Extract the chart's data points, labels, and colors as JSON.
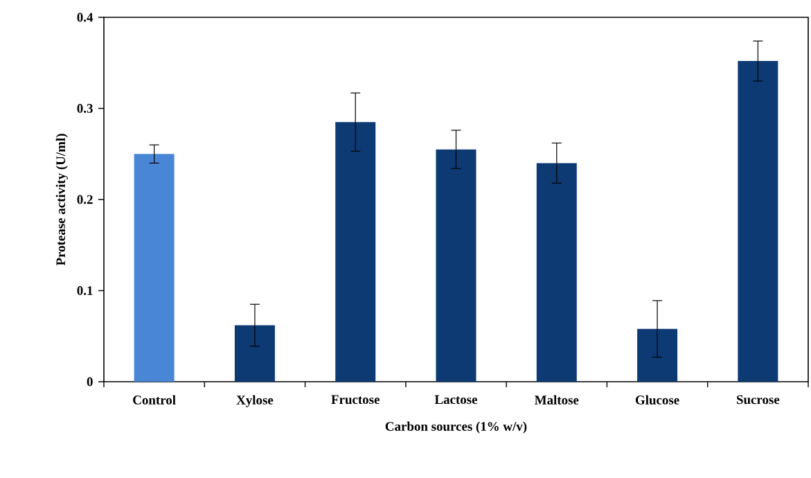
{
  "chart_data": {
    "type": "bar",
    "xlabel": "Carbon sources (1% w/v)",
    "ylabel": "Protease activity (U/ml)",
    "categories": [
      "Control",
      "Xylose",
      "Fructose",
      "Lactose",
      "Maltose",
      "Glucose",
      "Sucrose"
    ],
    "values": [
      0.25,
      0.062,
      0.285,
      0.255,
      0.24,
      0.058,
      0.352
    ],
    "errors": [
      0.01,
      0.023,
      0.032,
      0.021,
      0.022,
      0.031,
      0.022
    ],
    "colors": [
      "#4a86d6",
      "#0d3a73",
      "#0d3a73",
      "#0d3a73",
      "#0d3a73",
      "#0d3a73",
      "#0d3a73"
    ],
    "ylim": [
      0,
      0.4
    ],
    "yticks": [
      0,
      0.1,
      0.2,
      0.3,
      0.4
    ],
    "grid": false
  }
}
